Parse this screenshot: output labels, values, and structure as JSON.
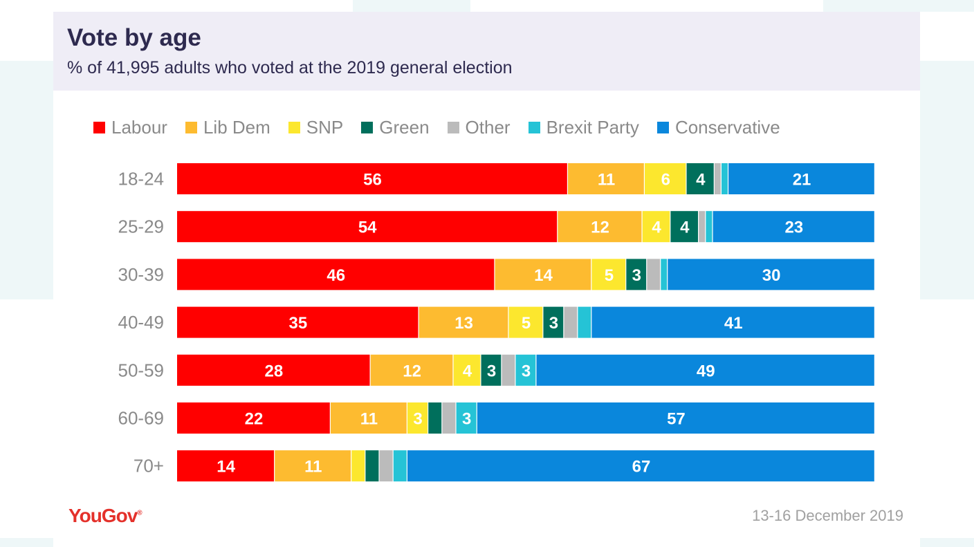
{
  "header": {
    "title": "Vote by age",
    "subtitle": "% of 41,995 adults who voted at the 2019 general election"
  },
  "footer": {
    "brand": "YouGov",
    "brand_mark": "®",
    "date": "13-16 December 2019"
  },
  "chart_data": {
    "type": "bar",
    "orientation": "horizontal",
    "stacked": true,
    "title": "Vote by age",
    "subtitle": "% of 41,995 adults who voted at the 2019 general election",
    "xlabel": "",
    "ylabel": "",
    "xlim": [
      0,
      100
    ],
    "legend_position": "top",
    "categories": [
      "18-24",
      "25-29",
      "30-39",
      "40-49",
      "50-59",
      "60-69",
      "70+"
    ],
    "series": [
      {
        "name": "Labour",
        "color": "#ff0000",
        "values": [
          56,
          54,
          46,
          35,
          28,
          22,
          14
        ],
        "labels": [
          "56",
          "54",
          "46",
          "35",
          "28",
          "22",
          "14"
        ]
      },
      {
        "name": "Lib Dem",
        "color": "#fdbb30",
        "values": [
          11,
          12,
          14,
          13,
          12,
          11,
          11
        ],
        "labels": [
          "11",
          "12",
          "14",
          "13",
          "12",
          "11",
          "11"
        ]
      },
      {
        "name": "SNP",
        "color": "#fce72e",
        "values": [
          6,
          4,
          5,
          5,
          4,
          3,
          2
        ],
        "labels": [
          "6",
          "4",
          "5",
          "5",
          "4",
          "3",
          ""
        ]
      },
      {
        "name": "Green",
        "color": "#006f5c",
        "values": [
          4,
          4,
          3,
          3,
          3,
          2,
          2
        ],
        "labels": [
          "4",
          "4",
          "3",
          "3",
          "3",
          "",
          ""
        ]
      },
      {
        "name": "Other",
        "color": "#bbbbbb",
        "values": [
          1,
          1,
          2,
          2,
          2,
          2,
          2
        ],
        "labels": [
          "",
          "",
          "",
          "",
          "",
          "",
          ""
        ]
      },
      {
        "name": "Brexit Party",
        "color": "#25c3d6",
        "values": [
          1,
          1,
          1,
          2,
          3,
          3,
          2
        ],
        "labels": [
          "",
          "",
          "",
          "",
          "3",
          "3",
          ""
        ]
      },
      {
        "name": "Conservative",
        "color": "#0a87dc",
        "values": [
          21,
          23,
          30,
          41,
          49,
          57,
          67
        ],
        "labels": [
          "21",
          "23",
          "30",
          "41",
          "49",
          "57",
          "67"
        ]
      }
    ]
  }
}
